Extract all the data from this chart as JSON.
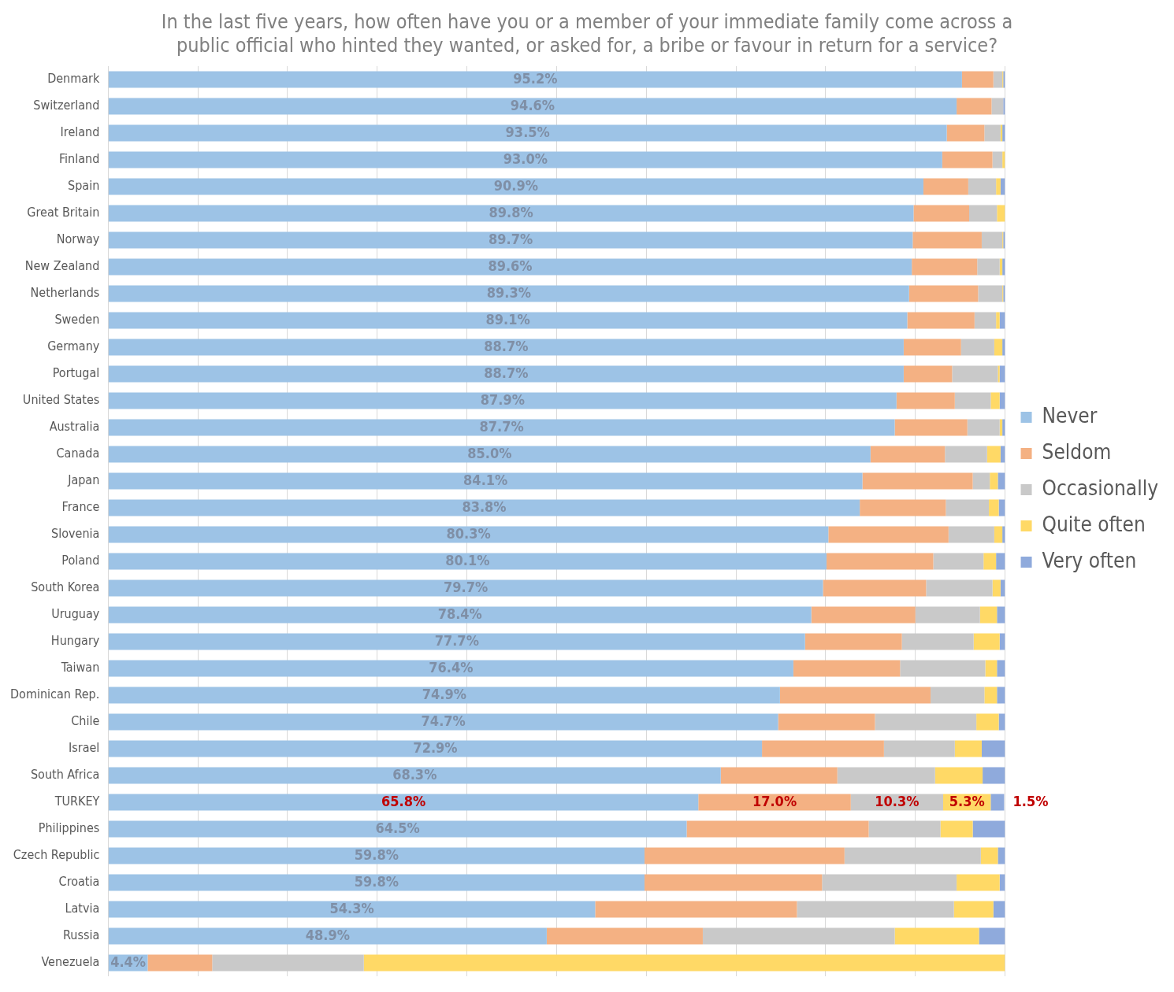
{
  "chart_data": {
    "type": "bar",
    "orientation": "horizontal",
    "stacked": true,
    "title": "In the last five years, how often have you or a member of your immediate family come across a public official who hinted they wanted, or asked for, a bribe or favour in return for a service?",
    "categories": [
      "Denmark",
      "Switzerland",
      "Ireland",
      "Finland",
      "Spain",
      "Great Britain",
      "Norway",
      "New Zealand",
      "Netherlands",
      "Sweden",
      "Germany",
      "Portugal",
      "United States",
      "Australia",
      "Canada",
      "Japan",
      "France",
      "Slovenia",
      "Poland",
      "South Korea",
      "Uruguay",
      "Hungary",
      "Taiwan",
      "Dominican Rep.",
      "Chile",
      "Israel",
      "South Africa",
      "TURKEY",
      "Philippines",
      "Czech Republic",
      "Croatia",
      "Latvia",
      "Russia",
      "Venezuela"
    ],
    "series": [
      {
        "name": "Never",
        "color": "#9dc3e6",
        "values": [
          95.2,
          94.6,
          93.5,
          93.0,
          90.9,
          89.8,
          89.7,
          89.6,
          89.3,
          89.1,
          88.7,
          88.7,
          87.9,
          87.7,
          85.0,
          84.1,
          83.8,
          80.3,
          80.1,
          79.7,
          78.4,
          77.7,
          76.4,
          74.9,
          74.7,
          72.9,
          68.3,
          65.8,
          64.5,
          59.8,
          59.8,
          54.3,
          48.9,
          4.4
        ],
        "value_labels": [
          "95.2%",
          "94.6%",
          "93.5%",
          "93.0%",
          "90.9%",
          "89.8%",
          "89.7%",
          "89.6%",
          "89.3%",
          "89.1%",
          "88.7%",
          "88.7%",
          "87.9%",
          "87.7%",
          "85.0%",
          "84.1%",
          "83.8%",
          "80.3%",
          "80.1%",
          "79.7%",
          "78.4%",
          "77.7%",
          "76.4%",
          "74.9%",
          "74.7%",
          "72.9%",
          "68.3%",
          "65.8%",
          "64.5%",
          "59.8%",
          "59.8%",
          "54.3%",
          "48.9%",
          "4.4%"
        ]
      },
      {
        "name": "Seldom",
        "color": "#f4b183",
        "values": [
          3.5,
          3.9,
          4.2,
          5.6,
          5.0,
          6.2,
          7.7,
          7.3,
          7.7,
          7.5,
          6.4,
          5.4,
          6.5,
          8.1,
          8.3,
          12.3,
          9.6,
          13.4,
          11.9,
          11.5,
          11.6,
          10.8,
          11.9,
          16.8,
          10.8,
          13.6,
          13.0,
          17.0,
          20.3,
          22.3,
          19.8,
          22.5,
          17.4,
          7.2
        ],
        "value_labels": [
          null,
          null,
          null,
          null,
          null,
          null,
          null,
          null,
          null,
          null,
          null,
          null,
          null,
          null,
          null,
          null,
          null,
          null,
          null,
          null,
          null,
          null,
          null,
          null,
          null,
          null,
          null,
          "17.0%",
          null,
          null,
          null,
          null,
          null,
          null
        ]
      },
      {
        "name": "Occasionally",
        "color": "#c9c9c9",
        "values": [
          1.0,
          1.3,
          1.8,
          1.1,
          3.1,
          3.1,
          2.3,
          2.5,
          2.7,
          2.4,
          3.7,
          5.1,
          4.0,
          3.6,
          4.7,
          1.9,
          4.8,
          5.1,
          5.6,
          7.4,
          7.2,
          8.0,
          9.5,
          6.0,
          11.3,
          7.9,
          10.9,
          10.3,
          8.0,
          15.2,
          15.0,
          17.5,
          21.4,
          16.9
        ],
        "value_labels": [
          null,
          null,
          null,
          null,
          null,
          null,
          null,
          null,
          null,
          null,
          null,
          null,
          null,
          null,
          null,
          null,
          null,
          null,
          null,
          null,
          null,
          null,
          null,
          null,
          null,
          null,
          null,
          "10.3%",
          null,
          null,
          null,
          null,
          null,
          null
        ]
      },
      {
        "name": "Quite often",
        "color": "#ffd966",
        "values": [
          0.1,
          0,
          0.2,
          0.3,
          0.5,
          0.9,
          0.1,
          0.3,
          0.1,
          0.4,
          0.9,
          0.2,
          1.0,
          0.3,
          1.5,
          0.9,
          1.1,
          0.9,
          1.4,
          0.9,
          1.9,
          2.9,
          1.3,
          1.4,
          2.5,
          3.0,
          5.3,
          5.3,
          3.6,
          1.9,
          4.8,
          4.4,
          9.4,
          71.5
        ],
        "value_labels": [
          null,
          null,
          null,
          null,
          null,
          null,
          null,
          null,
          null,
          null,
          null,
          null,
          null,
          null,
          null,
          null,
          null,
          null,
          null,
          null,
          null,
          null,
          null,
          null,
          null,
          null,
          null,
          "5.3%",
          null,
          null,
          null,
          null,
          null,
          null
        ]
      },
      {
        "name": "Very often",
        "color": "#8faadc",
        "values": [
          0.2,
          0.2,
          0.3,
          0,
          0.5,
          0,
          0.2,
          0.3,
          0.2,
          0.6,
          0.3,
          0.6,
          0.6,
          0.3,
          0.5,
          0.8,
          0.7,
          0.3,
          1.0,
          0.5,
          0.9,
          0.6,
          0.9,
          0.9,
          0.7,
          2.6,
          2.5,
          1.5,
          3.6,
          0.8,
          0.6,
          1.3,
          2.9,
          0
        ],
        "value_labels": [
          null,
          null,
          null,
          null,
          null,
          null,
          null,
          null,
          null,
          null,
          null,
          null,
          null,
          null,
          null,
          null,
          null,
          null,
          null,
          null,
          null,
          null,
          null,
          null,
          null,
          null,
          null,
          "1.5%",
          null,
          null,
          null,
          null,
          null,
          null
        ]
      }
    ],
    "xlim": [
      0,
      100
    ],
    "xticks": [
      {
        "value": 0,
        "label": null
      },
      {
        "value": 10,
        "label": null
      },
      {
        "value": 20,
        "label": null
      },
      {
        "value": 30,
        "label": null
      },
      {
        "value": 40,
        "label": null
      },
      {
        "value": 50,
        "label": null
      },
      {
        "value": 60,
        "label": null
      },
      {
        "value": 70,
        "label": null
      },
      {
        "value": 80,
        "label": null
      },
      {
        "value": 90,
        "label": null
      },
      {
        "value": 100,
        "label": null
      }
    ],
    "tick_labels": "y",
    "grid": "x",
    "legend": "right"
  }
}
